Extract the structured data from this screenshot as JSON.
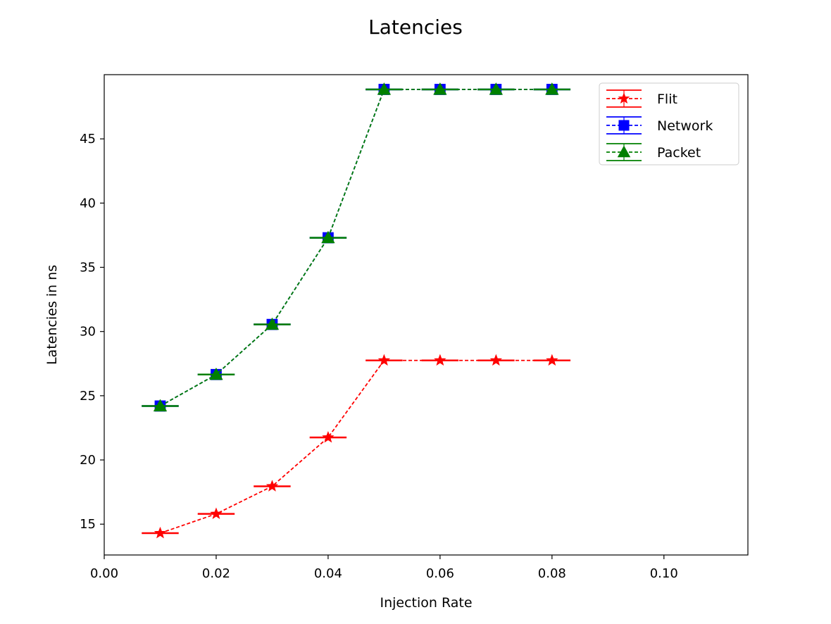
{
  "chart_data": {
    "type": "line",
    "title": "Latencies",
    "xlabel": "Injection Rate",
    "ylabel": "Latencies in ns",
    "xlim": [
      0.0,
      0.115
    ],
    "ylim": [
      12.6,
      50.0
    ],
    "xticks": [
      0.0,
      0.02,
      0.04,
      0.06,
      0.08,
      0.1
    ],
    "xtick_labels": [
      "0.00",
      "0.02",
      "0.04",
      "0.06",
      "0.08",
      "0.10"
    ],
    "yticks": [
      15,
      20,
      25,
      30,
      35,
      40,
      45
    ],
    "ytick_labels": [
      "15",
      "20",
      "25",
      "30",
      "35",
      "40",
      "45"
    ],
    "grid": false,
    "legend_position": "top-right",
    "x": [
      0.01,
      0.02,
      0.03,
      0.04,
      0.05,
      0.06,
      0.07,
      0.08
    ],
    "series": [
      {
        "name": "Flit",
        "color": "#ff0000",
        "marker": "star",
        "linestyle": "dashed",
        "values": [
          14.3,
          15.8,
          17.95,
          21.75,
          27.75,
          27.75,
          27.75,
          27.75
        ],
        "xerr": 0.0033
      },
      {
        "name": "Network",
        "color": "#0000ff",
        "marker": "square",
        "linestyle": "dashed",
        "values": [
          24.2,
          26.65,
          30.55,
          37.3,
          48.85,
          48.85,
          48.85,
          48.85
        ],
        "xerr": 0.0033
      },
      {
        "name": "Packet",
        "color": "#008000",
        "marker": "triangle",
        "linestyle": "dashed",
        "values": [
          24.2,
          26.65,
          30.55,
          37.3,
          48.85,
          48.85,
          48.85,
          48.85
        ],
        "xerr": 0.0033
      }
    ]
  }
}
